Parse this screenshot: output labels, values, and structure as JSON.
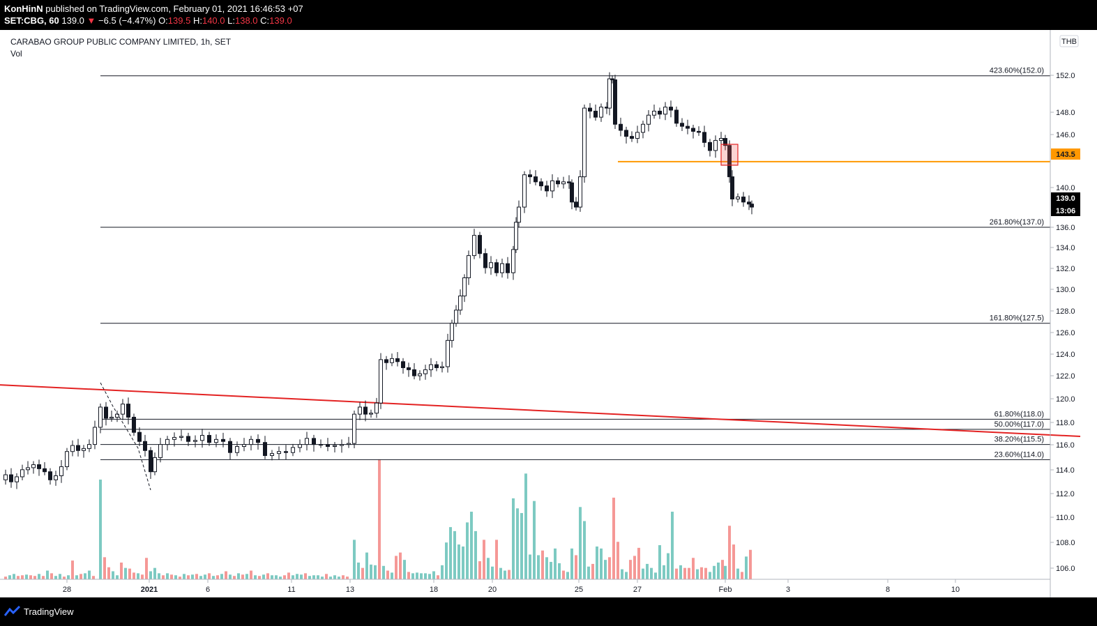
{
  "header": {
    "publisher": "KonHinN",
    "published_text": "published on TradingView.com, February 01, 2021 16:46:53 +07",
    "symbol": "SET:CBG, 60",
    "last": "139.0",
    "arrow": "▼",
    "change": "−6.5 (−4.47%)",
    "o_label": "O:",
    "o_value": "139.5",
    "h_label": "H:",
    "h_value": "140.0",
    "l_label": "L:",
    "l_value": "138.0",
    "c_label": "C:",
    "c_value": "139.0"
  },
  "legend": {
    "title": "CARABAO GROUP PUBLIC COMPANY LIMITED, 1h, SET",
    "volume": "Vol"
  },
  "footer": {
    "brand": "TradingView"
  },
  "colors": {
    "up": "#26a69a",
    "down": "#ef5350",
    "trendline": "#e32222",
    "level": "#ff9800"
  },
  "chart_data": {
    "type": "candlestick",
    "currency": "THB",
    "ylim": [
      105,
      154
    ],
    "y_ticks": [
      "152.0",
      "148.0",
      "146.0",
      "140.0",
      "136.0",
      "134.0",
      "132.0",
      "130.0",
      "128.0",
      "126.0",
      "124.0",
      "122.0",
      "120.0",
      "118.0",
      "116.0",
      "114.0",
      "112.0",
      "110.0",
      "108.0",
      "106.0"
    ],
    "x_ticks": [
      "28",
      "2021",
      "6",
      "11",
      "13",
      "18",
      "20",
      "25",
      "27",
      "Feb",
      "3",
      "8",
      "10"
    ],
    "price_tags": {
      "level": "143.5",
      "last": "139.0",
      "countdown": "13:06"
    },
    "fib_levels": [
      {
        "label": "423.60%(152.0)",
        "value": 152.0
      },
      {
        "label": "261.80%(137.0)",
        "value": 137.0
      },
      {
        "label": "161.80%(127.5)",
        "value": 127.5
      },
      {
        "label": "61.80%(118.0)",
        "value": 118.0
      },
      {
        "label": "50.00%(117.0)",
        "value": 117.0
      },
      {
        "label": "38.20%(115.5)",
        "value": 115.5
      },
      {
        "label": "23.60%(114.0)",
        "value": 114.0
      }
    ],
    "horizontal_level": 143.5,
    "trendline": [
      [
        0,
        121.4
      ],
      [
        1549,
        116.3
      ]
    ],
    "close_series": [
      [
        0,
        112
      ],
      [
        8,
        112.5
      ],
      [
        16,
        111.8
      ],
      [
        24,
        112.3
      ],
      [
        32,
        113
      ],
      [
        40,
        113.2
      ],
      [
        48,
        113.5
      ],
      [
        56,
        113.1
      ],
      [
        64,
        112.8
      ],
      [
        72,
        112
      ],
      [
        80,
        112.4
      ],
      [
        88,
        113.3
      ],
      [
        96,
        114.8
      ],
      [
        104,
        115.4
      ],
      [
        112,
        114.9
      ],
      [
        120,
        115.1
      ],
      [
        128,
        115.5
      ],
      [
        136,
        117.2
      ],
      [
        144,
        119.2
      ],
      [
        152,
        118.1
      ],
      [
        160,
        118.2
      ],
      [
        168,
        118.5
      ],
      [
        176,
        119.5
      ],
      [
        184,
        118.2
      ],
      [
        192,
        116.7
      ],
      [
        200,
        115.8
      ],
      [
        208,
        114.9
      ],
      [
        216,
        112.8
      ],
      [
        222,
        114.2
      ],
      [
        230,
        115.5
      ],
      [
        240,
        116
      ],
      [
        250,
        116.2
      ],
      [
        260,
        116.3
      ],
      [
        270,
        115.8
      ],
      [
        280,
        115.9
      ],
      [
        290,
        116.4
      ],
      [
        300,
        115.7
      ],
      [
        310,
        116
      ],
      [
        320,
        115.8
      ],
      [
        330,
        114.7
      ],
      [
        340,
        115.3
      ],
      [
        350,
        115.5
      ],
      [
        360,
        116
      ],
      [
        370,
        115.7
      ],
      [
        380,
        114.4
      ],
      [
        390,
        114.6
      ],
      [
        400,
        114.8
      ],
      [
        410,
        114.7
      ],
      [
        420,
        115.2
      ],
      [
        430,
        115.5
      ],
      [
        440,
        116.1
      ],
      [
        450,
        115.5
      ],
      [
        460,
        115.5
      ],
      [
        470,
        115.3
      ],
      [
        480,
        115.4
      ],
      [
        490,
        115.5
      ],
      [
        500,
        115.6
      ],
      [
        508,
        118.5
      ],
      [
        516,
        119.2
      ],
      [
        524,
        118.5
      ],
      [
        532,
        118.6
      ],
      [
        540,
        119.6
      ],
      [
        546,
        123.9
      ],
      [
        554,
        123.6
      ],
      [
        562,
        124
      ],
      [
        570,
        123.7
      ],
      [
        578,
        123.1
      ],
      [
        586,
        122.9
      ],
      [
        594,
        122.3
      ],
      [
        602,
        122.5
      ],
      [
        610,
        122.9
      ],
      [
        618,
        123.4
      ],
      [
        626,
        123.1
      ],
      [
        634,
        123.2
      ],
      [
        642,
        125.8
      ],
      [
        648,
        127.5
      ],
      [
        654,
        128.8
      ],
      [
        660,
        130.2
      ],
      [
        666,
        132
      ],
      [
        672,
        134.2
      ],
      [
        680,
        136.2
      ],
      [
        688,
        134.4
      ],
      [
        696,
        133
      ],
      [
        704,
        133.5
      ],
      [
        712,
        132.5
      ],
      [
        720,
        133.4
      ],
      [
        728,
        132.5
      ],
      [
        736,
        134.8
      ],
      [
        740,
        137.5
      ],
      [
        744,
        139
      ],
      [
        752,
        142.2
      ],
      [
        760,
        142
      ],
      [
        768,
        141.5
      ],
      [
        776,
        141.1
      ],
      [
        784,
        140.6
      ],
      [
        792,
        141.6
      ],
      [
        800,
        141.3
      ],
      [
        808,
        141.5
      ],
      [
        816,
        141.4
      ],
      [
        820,
        139.5
      ],
      [
        826,
        139
      ],
      [
        832,
        142
      ],
      [
        838,
        148.8
      ],
      [
        846,
        148.5
      ],
      [
        854,
        147.9
      ],
      [
        862,
        148.9
      ],
      [
        870,
        148.8
      ],
      [
        874,
        151.7
      ],
      [
        878,
        151.6
      ],
      [
        882,
        147.2
      ],
      [
        890,
        146.6
      ],
      [
        898,
        146
      ],
      [
        906,
        145.8
      ],
      [
        914,
        146.4
      ],
      [
        922,
        147.2
      ],
      [
        930,
        148.1
      ],
      [
        938,
        148.5
      ],
      [
        946,
        148.2
      ],
      [
        954,
        148.9
      ],
      [
        962,
        148.6
      ],
      [
        970,
        147.3
      ],
      [
        978,
        147
      ],
      [
        986,
        146.8
      ],
      [
        994,
        146.5
      ],
      [
        1002,
        146.4
      ],
      [
        1010,
        145.4
      ],
      [
        1018,
        144.6
      ],
      [
        1026,
        145.6
      ],
      [
        1034,
        145.8
      ],
      [
        1040,
        145.1
      ],
      [
        1046,
        142
      ],
      [
        1050,
        139.8
      ],
      [
        1058,
        140
      ],
      [
        1066,
        139.5
      ],
      [
        1074,
        139.3
      ],
      [
        1078,
        139
      ]
    ],
    "volume_max": 18.4,
    "volume": [
      [
        8,
        0.4,
        0
      ],
      [
        14,
        0.6,
        1
      ],
      [
        20,
        0.8,
        1
      ],
      [
        26,
        0.5,
        0
      ],
      [
        32,
        0.6,
        0
      ],
      [
        38,
        0.7,
        1
      ],
      [
        44,
        0.6,
        0
      ],
      [
        50,
        0.5,
        0
      ],
      [
        56,
        0.8,
        1
      ],
      [
        62,
        0.5,
        0
      ],
      [
        68,
        1.3,
        1
      ],
      [
        74,
        0.9,
        0
      ],
      [
        80,
        0.5,
        1
      ],
      [
        86,
        0.8,
        1
      ],
      [
        92,
        0.4,
        0
      ],
      [
        98,
        0.6,
        1
      ],
      [
        104,
        2.8,
        0
      ],
      [
        110,
        0.6,
        1
      ],
      [
        116,
        0.8,
        0
      ],
      [
        122,
        0.9,
        1
      ],
      [
        128,
        1.3,
        1
      ],
      [
        134,
        0.5,
        0
      ],
      [
        144,
        14.9,
        1
      ],
      [
        150,
        3.3,
        0
      ],
      [
        156,
        1.8,
        0
      ],
      [
        162,
        1.2,
        1
      ],
      [
        168,
        0.6,
        1
      ],
      [
        174,
        2.5,
        0
      ],
      [
        180,
        1.7,
        1
      ],
      [
        186,
        1.6,
        0
      ],
      [
        192,
        1.0,
        0
      ],
      [
        198,
        0.9,
        1
      ],
      [
        204,
        0.7,
        0
      ],
      [
        210,
        3.2,
        0
      ],
      [
        216,
        1.2,
        1
      ],
      [
        222,
        1.7,
        1
      ],
      [
        228,
        0.9,
        1
      ],
      [
        234,
        0.6,
        0
      ],
      [
        240,
        0.9,
        1
      ],
      [
        246,
        0.7,
        0
      ],
      [
        252,
        0.6,
        1
      ],
      [
        258,
        0.4,
        0
      ],
      [
        264,
        0.8,
        1
      ],
      [
        270,
        0.6,
        0
      ],
      [
        276,
        0.7,
        1
      ],
      [
        282,
        0.8,
        0
      ],
      [
        288,
        0.5,
        1
      ],
      [
        294,
        0.7,
        1
      ],
      [
        300,
        0.9,
        0
      ],
      [
        306,
        0.5,
        1
      ],
      [
        312,
        0.6,
        0
      ],
      [
        318,
        0.8,
        1
      ],
      [
        324,
        1.2,
        0
      ],
      [
        330,
        0.7,
        1
      ],
      [
        336,
        0.5,
        0
      ],
      [
        342,
        0.9,
        1
      ],
      [
        348,
        0.7,
        0
      ],
      [
        354,
        0.8,
        1
      ],
      [
        360,
        1.3,
        0
      ],
      [
        366,
        0.6,
        1
      ],
      [
        372,
        0.5,
        0
      ],
      [
        378,
        0.7,
        1
      ],
      [
        384,
        0.9,
        0
      ],
      [
        390,
        0.6,
        1
      ],
      [
        396,
        0.6,
        1
      ],
      [
        402,
        0.4,
        1
      ],
      [
        408,
        0.6,
        0
      ],
      [
        414,
        1.0,
        0
      ],
      [
        420,
        0.6,
        1
      ],
      [
        426,
        0.8,
        1
      ],
      [
        432,
        0.7,
        1
      ],
      [
        438,
        0.9,
        0
      ],
      [
        444,
        0.5,
        1
      ],
      [
        450,
        0.6,
        1
      ],
      [
        456,
        0.6,
        1
      ],
      [
        462,
        0.4,
        1
      ],
      [
        468,
        0.8,
        0
      ],
      [
        474,
        0.4,
        1
      ],
      [
        480,
        0.6,
        1
      ],
      [
        486,
        0.4,
        1
      ],
      [
        492,
        0.6,
        0
      ],
      [
        498,
        0.4,
        0
      ],
      [
        508,
        5.9,
        1
      ],
      [
        514,
        2.5,
        1
      ],
      [
        520,
        1.7,
        0
      ],
      [
        526,
        4.0,
        1
      ],
      [
        532,
        2.2,
        1
      ],
      [
        538,
        2.1,
        1
      ],
      [
        544,
        17.9,
        0
      ],
      [
        550,
        2.0,
        1
      ],
      [
        556,
        1.3,
        0
      ],
      [
        562,
        1.0,
        1
      ],
      [
        568,
        3.5,
        0
      ],
      [
        574,
        4.0,
        0
      ],
      [
        580,
        2.9,
        1
      ],
      [
        586,
        1.1,
        0
      ],
      [
        592,
        0.9,
        1
      ],
      [
        598,
        1.0,
        1
      ],
      [
        604,
        0.9,
        1
      ],
      [
        610,
        0.9,
        1
      ],
      [
        616,
        0.8,
        1
      ],
      [
        622,
        1.2,
        1
      ],
      [
        628,
        0.6,
        0
      ],
      [
        634,
        2.1,
        1
      ],
      [
        640,
        5.5,
        1
      ],
      [
        646,
        7.8,
        1
      ],
      [
        652,
        7.2,
        1
      ],
      [
        658,
        5.2,
        1
      ],
      [
        664,
        4.9,
        1
      ],
      [
        670,
        8.5,
        1
      ],
      [
        676,
        10.1,
        1
      ],
      [
        682,
        7.2,
        1
      ],
      [
        688,
        2.7,
        0
      ],
      [
        694,
        5.9,
        0
      ],
      [
        700,
        3.2,
        1
      ],
      [
        706,
        1.9,
        1
      ],
      [
        712,
        5.9,
        0
      ],
      [
        718,
        1.7,
        1
      ],
      [
        724,
        1.3,
        1
      ],
      [
        730,
        1.4,
        0
      ],
      [
        736,
        12.1,
        1
      ],
      [
        742,
        10.6,
        1
      ],
      [
        748,
        9.9,
        1
      ],
      [
        754,
        15.8,
        1
      ],
      [
        760,
        3.7,
        1
      ],
      [
        766,
        11.7,
        1
      ],
      [
        772,
        3.6,
        1
      ],
      [
        778,
        4.3,
        0
      ],
      [
        784,
        3.3,
        1
      ],
      [
        790,
        2.6,
        1
      ],
      [
        796,
        4.6,
        1
      ],
      [
        802,
        2.4,
        1
      ],
      [
        808,
        1.3,
        0
      ],
      [
        814,
        1.1,
        1
      ],
      [
        820,
        4.6,
        1
      ],
      [
        826,
        3.6,
        0
      ],
      [
        832,
        10.8,
        1
      ],
      [
        838,
        8.7,
        1
      ],
      [
        844,
        1.9,
        1
      ],
      [
        850,
        2.3,
        0
      ],
      [
        856,
        4.9,
        1
      ],
      [
        862,
        4.6,
        1
      ],
      [
        868,
        2.9,
        1
      ],
      [
        874,
        3.3,
        0
      ],
      [
        880,
        12.2,
        0
      ],
      [
        886,
        5.6,
        0
      ],
      [
        892,
        1.5,
        1
      ],
      [
        898,
        1.1,
        1
      ],
      [
        904,
        2.9,
        0
      ],
      [
        910,
        3.5,
        0
      ],
      [
        916,
        4.7,
        0
      ],
      [
        922,
        1.6,
        1
      ],
      [
        928,
        2.3,
        1
      ],
      [
        934,
        1.7,
        1
      ],
      [
        940,
        1.0,
        1
      ],
      [
        946,
        5.1,
        1
      ],
      [
        952,
        2.1,
        1
      ],
      [
        958,
        3.9,
        1
      ],
      [
        964,
        10.1,
        1
      ],
      [
        970,
        1.6,
        0
      ],
      [
        976,
        2.1,
        1
      ],
      [
        982,
        1.7,
        0
      ],
      [
        988,
        1.7,
        0
      ],
      [
        994,
        3.2,
        0
      ],
      [
        1000,
        1.5,
        1
      ],
      [
        1006,
        1.8,
        0
      ],
      [
        1012,
        1.7,
        0
      ],
      [
        1018,
        1.1,
        1
      ],
      [
        1024,
        2.0,
        1
      ],
      [
        1030,
        2.5,
        1
      ],
      [
        1036,
        2.9,
        0
      ],
      [
        1040,
        2.0,
        1
      ],
      [
        1046,
        8.0,
        0
      ],
      [
        1052,
        5.2,
        0
      ],
      [
        1058,
        1.6,
        1
      ],
      [
        1064,
        1.1,
        0
      ],
      [
        1070,
        3.4,
        1
      ],
      [
        1076,
        4.4,
        0
      ]
    ]
  }
}
